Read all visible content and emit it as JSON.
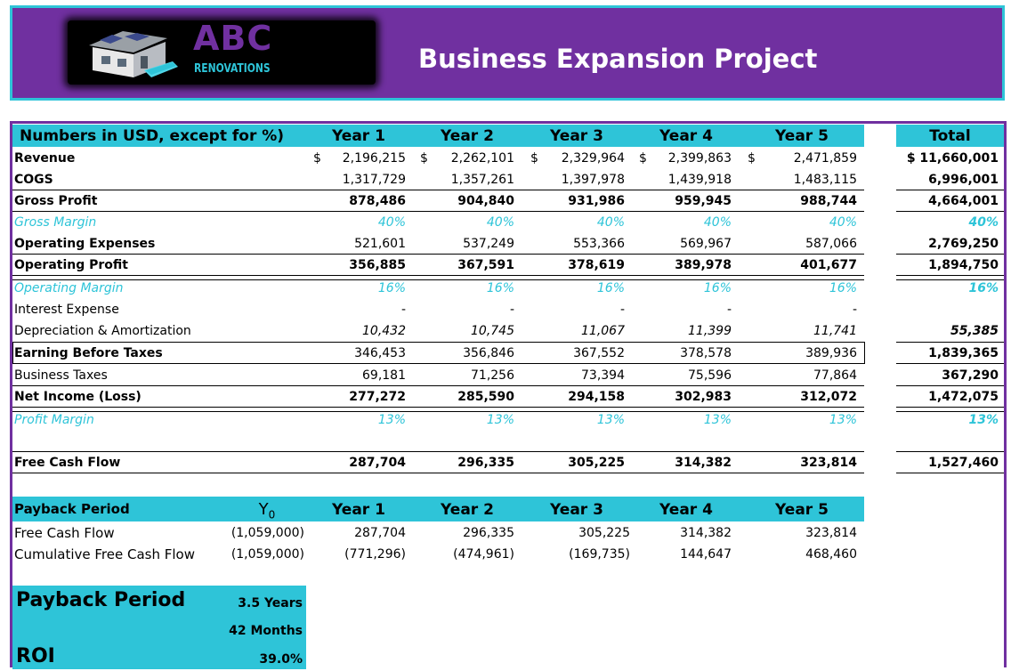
{
  "header": {
    "logo_text": "ABC",
    "logo_subtext": "RENOVATIONS",
    "title": "Business Expansion Project"
  },
  "colors": {
    "accent_purple": "#7030a0",
    "accent_teal": "#2ec4d8"
  },
  "table": {
    "caption": "Numbers in USD, except for %)",
    "years": [
      "Year 1",
      "Year 2",
      "Year 3",
      "Year 4",
      "Year 5"
    ],
    "total_label": "Total",
    "currency_symbol": "$",
    "rows": [
      {
        "label": "Revenue",
        "values": [
          "2,196,215",
          "2,262,101",
          "2,329,964",
          "2,399,863",
          "2,471,859"
        ],
        "total": "$  11,660,001"
      },
      {
        "label": "COGS",
        "values": [
          "1,317,729",
          "1,357,261",
          "1,397,978",
          "1,439,918",
          "1,483,115"
        ],
        "total": "6,996,001"
      },
      {
        "label": "Gross Profit",
        "values": [
          "878,486",
          "904,840",
          "931,986",
          "959,945",
          "988,744"
        ],
        "total": "4,664,001"
      },
      {
        "label": "Gross Margin",
        "values": [
          "40%",
          "40%",
          "40%",
          "40%",
          "40%"
        ],
        "total": "40%"
      },
      {
        "label": "Operating Expenses",
        "values": [
          "521,601",
          "537,249",
          "553,366",
          "569,967",
          "587,066"
        ],
        "total": "2,769,250"
      },
      {
        "label": "Operating Profit",
        "values": [
          "356,885",
          "367,591",
          "378,619",
          "389,978",
          "401,677"
        ],
        "total": "1,894,750"
      },
      {
        "label": "Operating Margin",
        "values": [
          "16%",
          "16%",
          "16%",
          "16%",
          "16%"
        ],
        "total": "16%"
      },
      {
        "label": "Interest Expense",
        "values": [
          "-",
          "-",
          "-",
          "-",
          "-"
        ],
        "total": ""
      },
      {
        "label": "Depreciation & Amortization",
        "values": [
          "10,432",
          "10,745",
          "11,067",
          "11,399",
          "11,741"
        ],
        "total": "55,385"
      },
      {
        "label": "Earning Before Taxes",
        "values": [
          "346,453",
          "356,846",
          "367,552",
          "378,578",
          "389,936"
        ],
        "total": "1,839,365"
      },
      {
        "label": "Business Taxes",
        "values": [
          "69,181",
          "71,256",
          "73,394",
          "75,596",
          "77,864"
        ],
        "total": "367,290"
      },
      {
        "label": "Net Income (Loss)",
        "values": [
          "277,272",
          "285,590",
          "294,158",
          "302,983",
          "312,072"
        ],
        "total": "1,472,075"
      },
      {
        "label": "Profit Margin",
        "values": [
          "13%",
          "13%",
          "13%",
          "13%",
          "13%"
        ],
        "total": "13%"
      },
      {
        "label": "Free Cash Flow",
        "values": [
          "287,704",
          "296,335",
          "305,225",
          "314,382",
          "323,814"
        ],
        "total": "1,527,460"
      }
    ]
  },
  "payback_table": {
    "caption": "Payback Period",
    "y0_label": "Y",
    "y0_sub": "0",
    "years": [
      "Year 1",
      "Year 2",
      "Year 3",
      "Year 4",
      "Year 5"
    ],
    "rows": [
      {
        "label": "Free Cash Flow",
        "y0": "(1,059,000)",
        "values": [
          "287,704",
          "296,335",
          "305,225",
          "314,382",
          "323,814"
        ]
      },
      {
        "label": "Cumulative Free Cash Flow",
        "y0": "(1,059,000)",
        "values": [
          "(771,296)",
          "(474,961)",
          "(169,735)",
          "144,647",
          "468,460"
        ]
      }
    ]
  },
  "summary": {
    "payback_label": "Payback Period",
    "years_value": "3.5 Years",
    "months_value": "42 Months",
    "roi_label": "ROI",
    "roi_value": "39.0%"
  }
}
